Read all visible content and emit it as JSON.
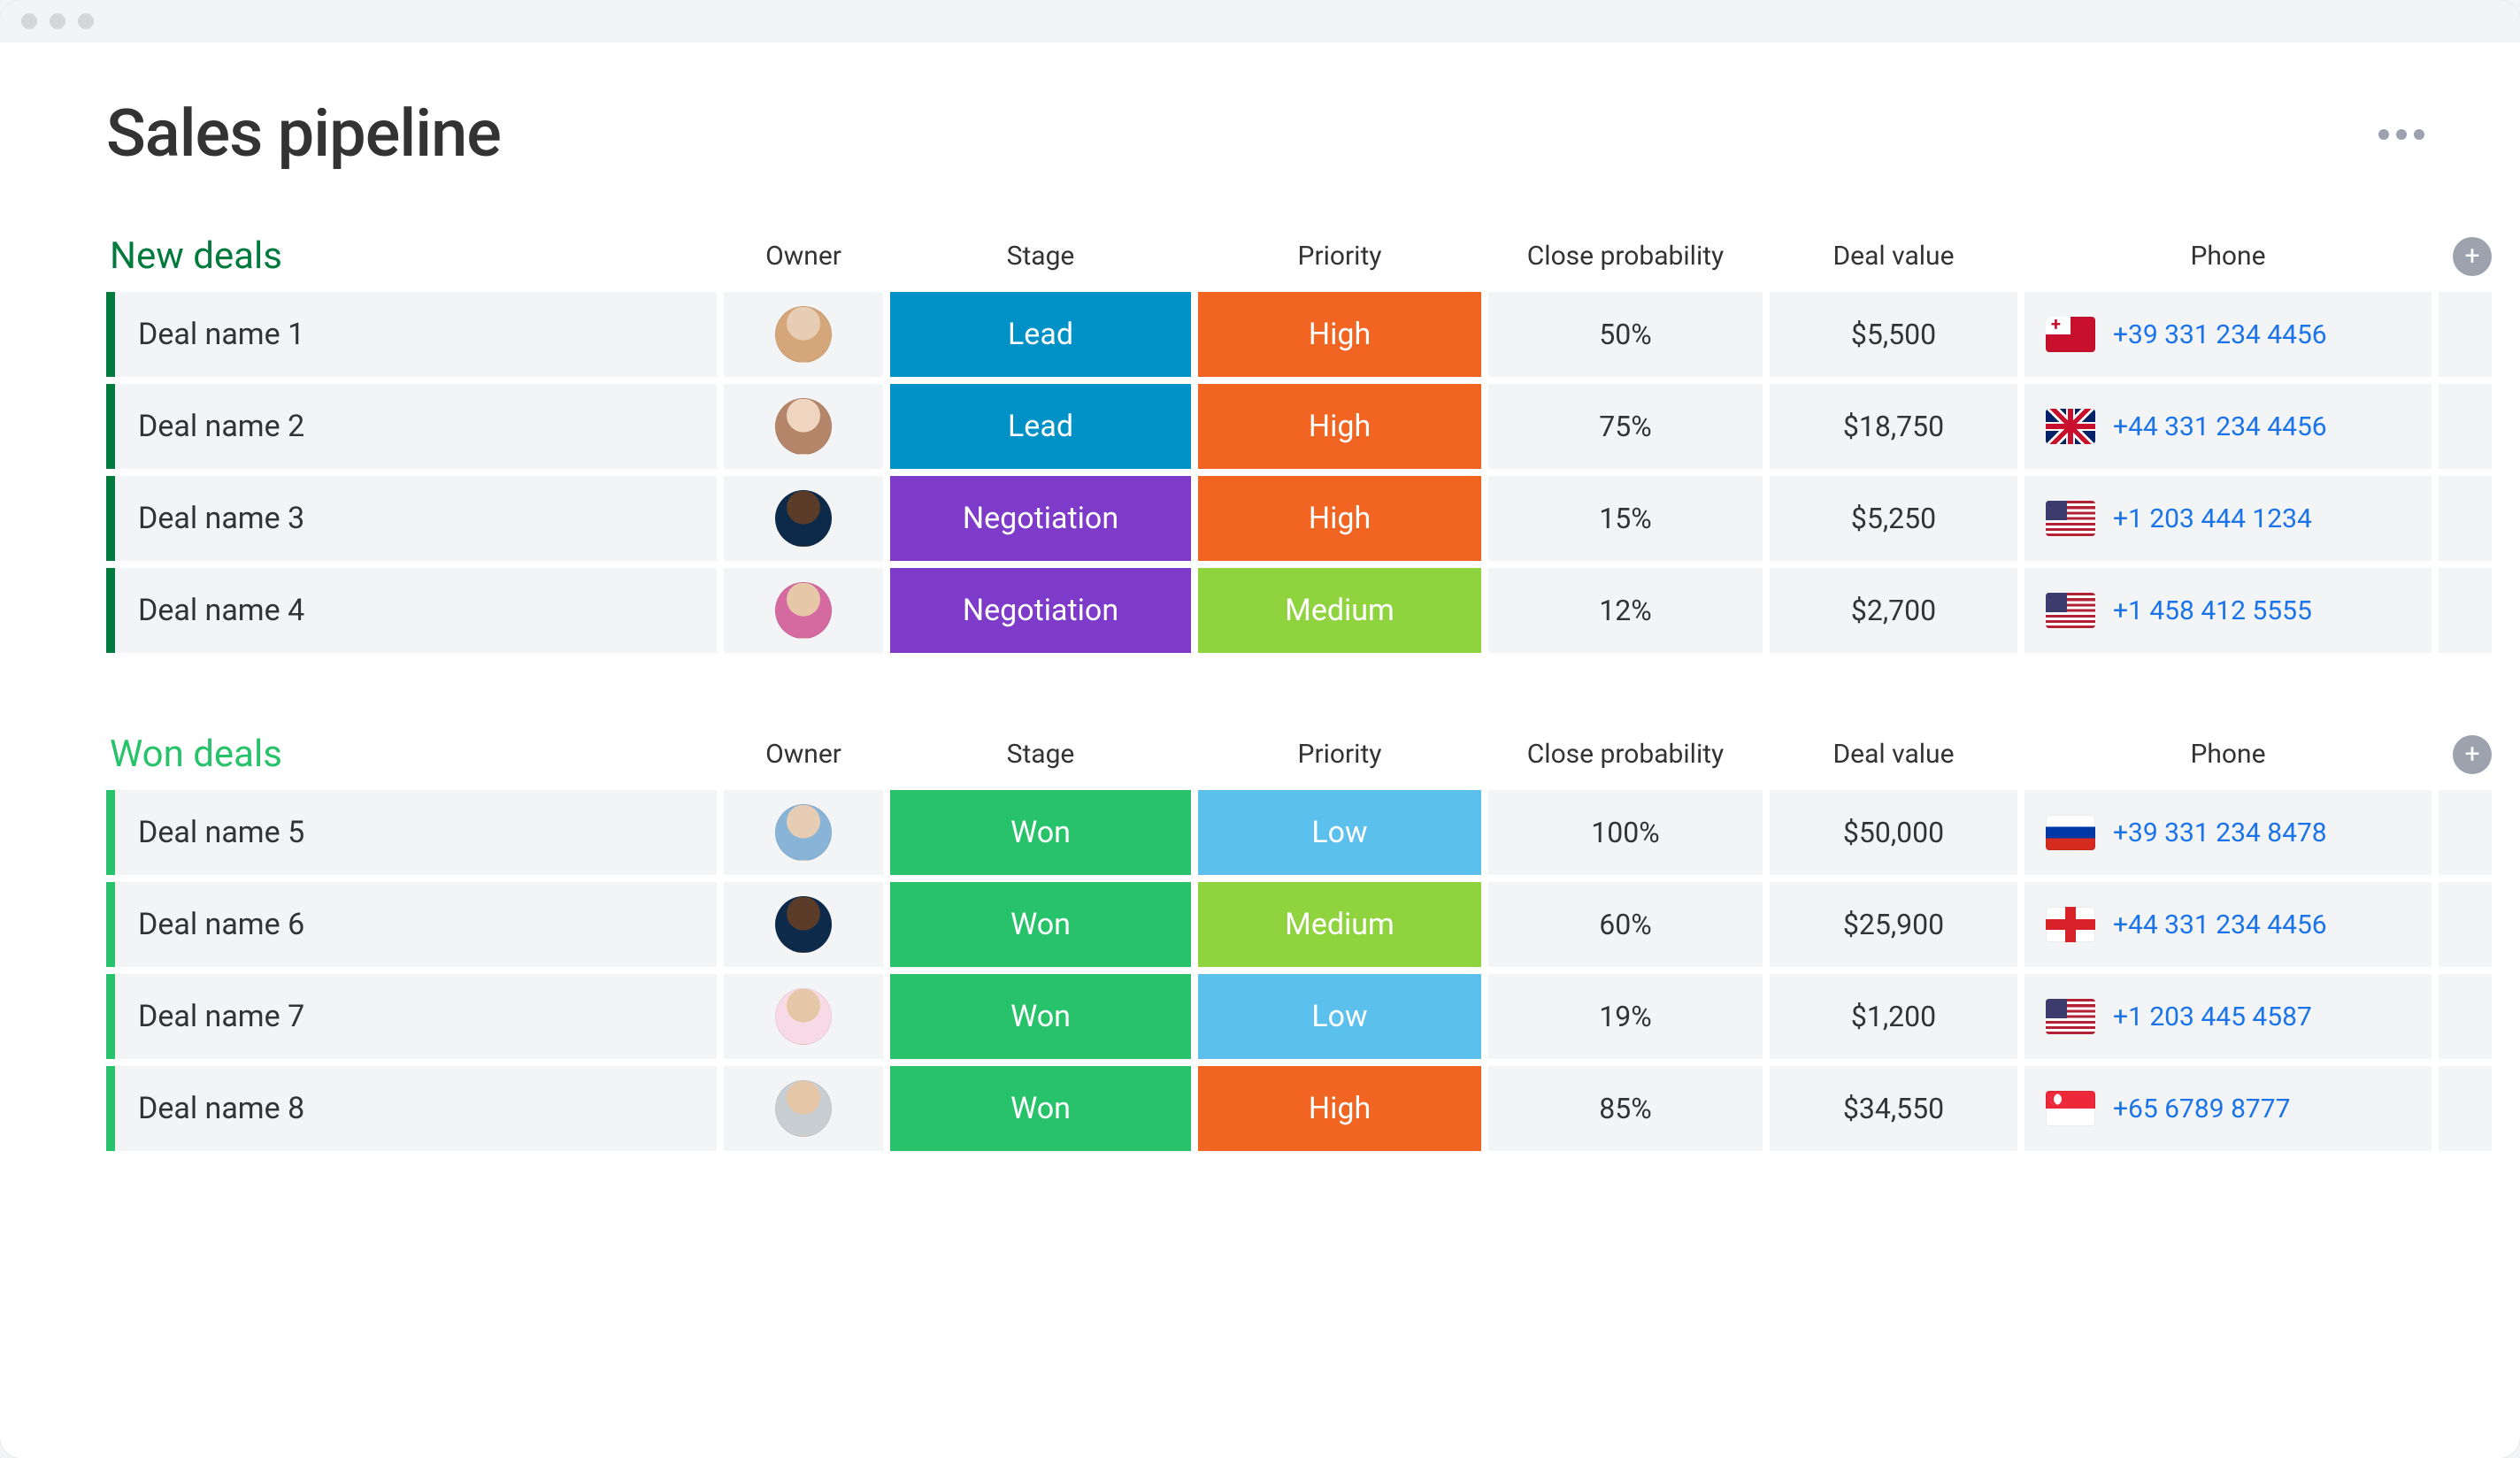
{
  "page": {
    "title": "Sales pipeline",
    "background_color": "#ffffff",
    "titlebar_color": "#f3f4f6",
    "cell_background": "#f3f4f6",
    "phone_link_color": "#1a73e8"
  },
  "columns": [
    "Owner",
    "Stage",
    "Priority",
    "Close probability",
    "Deal value",
    "Phone"
  ],
  "stage_colors": {
    "Lead": "#0091c7",
    "Negotiation": "#7e3bc9",
    "Won": "#27c26a"
  },
  "priority_colors": {
    "High": "#f26422",
    "Medium": "#8fd43f",
    "Low": "#5bc0ec"
  },
  "sections": [
    {
      "id": "new",
      "title": "New deals",
      "title_color": "#007a3d",
      "accent_color": "#007a3d",
      "rows": [
        {
          "name": "Deal name 1",
          "avatar": "av-1",
          "stage": "Lead",
          "priority": "High",
          "close_prob": "50%",
          "deal_value": "$5,500",
          "flag": "flag-tonga",
          "phone": "+39 331 234 4456"
        },
        {
          "name": "Deal name 2",
          "avatar": "av-2",
          "stage": "Lead",
          "priority": "High",
          "close_prob": "75%",
          "deal_value": "$18,750",
          "flag": "flag-uk",
          "phone": "+44 331 234 4456"
        },
        {
          "name": "Deal name 3",
          "avatar": "av-3",
          "stage": "Negotiation",
          "priority": "High",
          "close_prob": "15%",
          "deal_value": "$5,250",
          "flag": "flag-us",
          "phone": "+1 203 444 1234"
        },
        {
          "name": "Deal name 4",
          "avatar": "av-4",
          "stage": "Negotiation",
          "priority": "Medium",
          "close_prob": "12%",
          "deal_value": "$2,700",
          "flag": "flag-us",
          "phone": "+1 458 412 5555"
        }
      ]
    },
    {
      "id": "won",
      "title": "Won deals",
      "title_color": "#27c26a",
      "accent_color": "#27c26a",
      "rows": [
        {
          "name": "Deal name 5",
          "avatar": "av-5",
          "stage": "Won",
          "priority": "Low",
          "close_prob": "100%",
          "deal_value": "$50,000",
          "flag": "flag-ru",
          "phone": "+39 331 234 8478"
        },
        {
          "name": "Deal name 6",
          "avatar": "av-6",
          "stage": "Won",
          "priority": "Medium",
          "close_prob": "60%",
          "deal_value": "$25,900",
          "flag": "flag-gg",
          "phone": "+44 331 234 4456"
        },
        {
          "name": "Deal name 7",
          "avatar": "av-7",
          "stage": "Won",
          "priority": "Low",
          "close_prob": "19%",
          "deal_value": "$1,200",
          "flag": "flag-us",
          "phone": "+1 203 445 4587"
        },
        {
          "name": "Deal name 8",
          "avatar": "av-8",
          "stage": "Won",
          "priority": "High",
          "close_prob": "85%",
          "deal_value": "$34,550",
          "flag": "flag-sg",
          "phone": "+65 6789 8777"
        }
      ]
    }
  ]
}
